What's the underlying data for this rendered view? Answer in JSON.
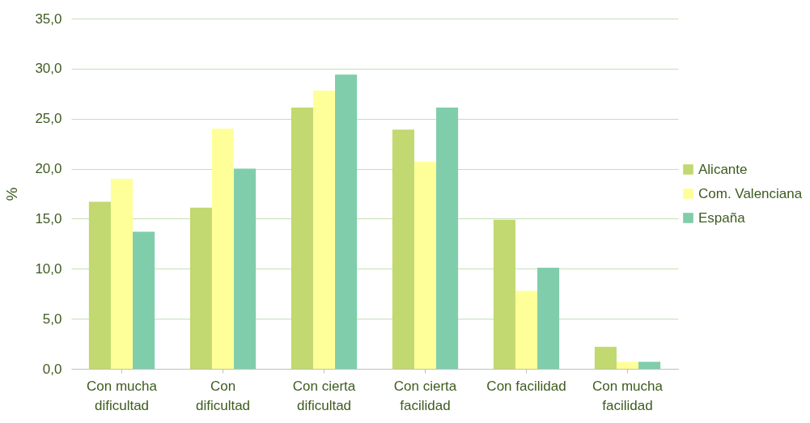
{
  "chart_data": {
    "type": "bar",
    "ylabel": "%",
    "categories": [
      "Con mucha dificultad",
      "Con dificultad",
      "Con cierta dificultad",
      "Con cierta facilidad",
      "Con facilidad",
      "Con mucha facilidad"
    ],
    "series": [
      {
        "name": "Alicante",
        "color": "#c2d870",
        "values": [
          16.7,
          16.1,
          26.1,
          23.9,
          14.9,
          2.2
        ]
      },
      {
        "name": "Com. Valenciana",
        "color": "#ffff99",
        "values": [
          19.0,
          24.0,
          27.8,
          20.7,
          7.8,
          0.7
        ]
      },
      {
        "name": "España",
        "color": "#80cdab",
        "values": [
          13.7,
          20.0,
          29.4,
          26.1,
          10.1,
          0.7
        ]
      }
    ],
    "ylim": [
      0,
      35
    ],
    "yticks": [
      {
        "value": 0,
        "label": "0,0"
      },
      {
        "value": 5,
        "label": "5,0"
      },
      {
        "value": 10,
        "label": "10,0"
      },
      {
        "value": 15,
        "label": "15,0"
      },
      {
        "value": 20,
        "label": "20,0"
      },
      {
        "value": 25,
        "label": "25,0"
      },
      {
        "value": 30,
        "label": "30,0"
      },
      {
        "value": 35,
        "label": "35,0"
      }
    ],
    "grid": "y",
    "legend": "right"
  }
}
